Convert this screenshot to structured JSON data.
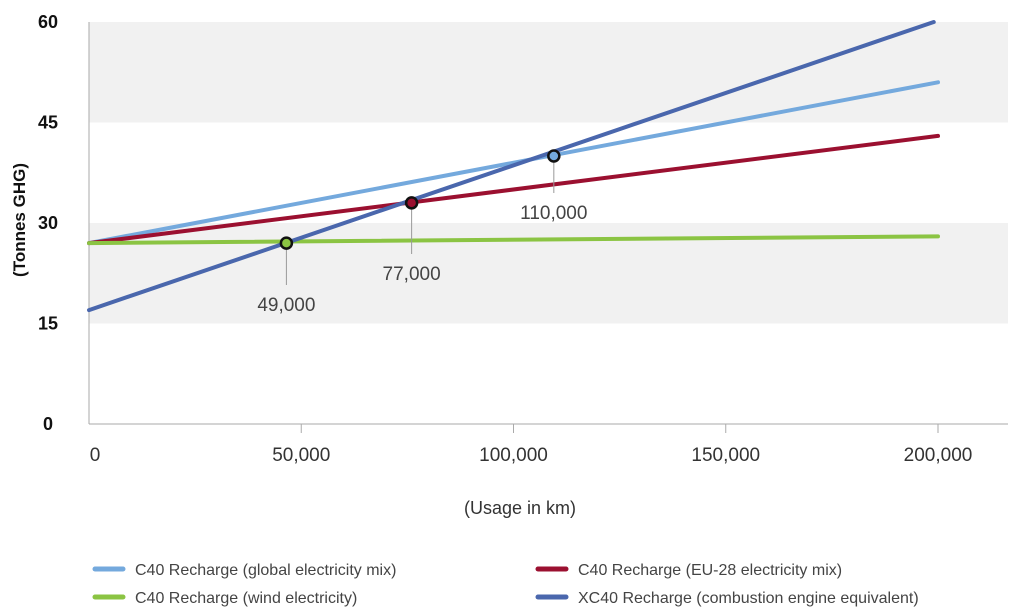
{
  "chart_data": {
    "type": "line",
    "xlabel": "(Usage in km)",
    "ylabel": "(Tonnes GHG)",
    "xlim": [
      0,
      215000
    ],
    "ylim": [
      0,
      60
    ],
    "x_ticks": [
      "0",
      "50,000",
      "100,000",
      "150,000",
      "200,000"
    ],
    "y_ticks": [
      "0",
      "15",
      "30",
      "45",
      "60"
    ],
    "grid": "alternating horizontal bands",
    "legend_position": "bottom",
    "series": [
      {
        "name": "C40 Recharge (global electricity mix)",
        "color": "#74a9dd",
        "points": [
          [
            0,
            27
          ],
          [
            200000,
            51
          ]
        ]
      },
      {
        "name": "C40 Recharge (EU-28 electricity mix)",
        "color": "#9b1030",
        "points": [
          [
            0,
            27
          ],
          [
            200000,
            43
          ]
        ]
      },
      {
        "name": "C40 Recharge (wind electricity)",
        "color": "#8bc443",
        "points": [
          [
            0,
            27
          ],
          [
            200000,
            28
          ]
        ]
      },
      {
        "name": "XC40 Recharge (combustion engine equivalent)",
        "color": "#4a67ad",
        "points": [
          [
            0,
            17
          ],
          [
            199000,
            60
          ]
        ]
      }
    ],
    "annotations": [
      {
        "label": "49,000",
        "x": 46500,
        "y": 27,
        "fill": "#8bc443"
      },
      {
        "label": "77,000",
        "x": 76000,
        "y": 33,
        "fill": "#9b1030"
      },
      {
        "label": "110,000",
        "x": 109500,
        "y": 40,
        "fill": "#74a9dd"
      }
    ]
  }
}
